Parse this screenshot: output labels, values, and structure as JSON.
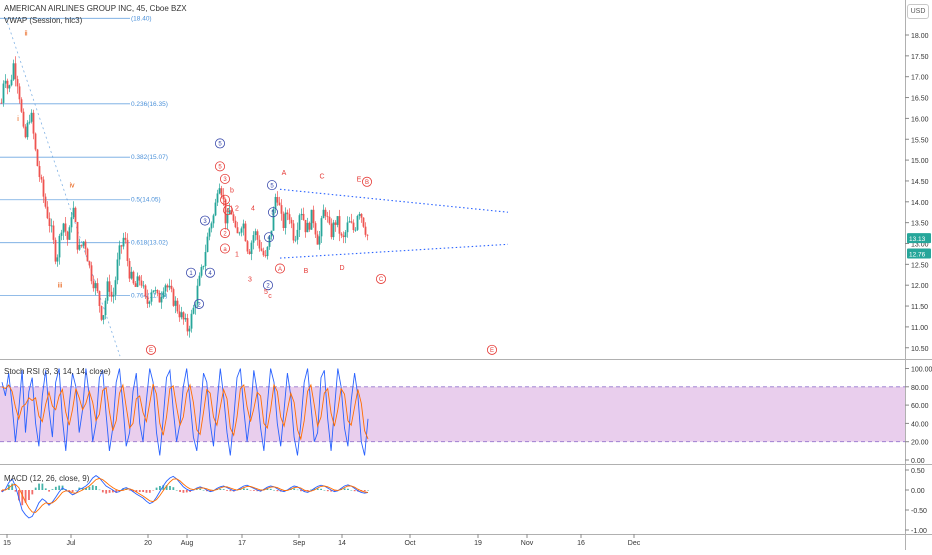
{
  "header": {
    "symbol_title": "AMERICAN AIRLINES GROUP INC, 45, Cboe BZX",
    "vwap_label": "VWAP (Session, hlc3)",
    "currency_badge": "USD"
  },
  "colors": {
    "up": "#26a69a",
    "down": "#ef5350",
    "fib": "#4a90d9",
    "wave_red": "#e53935",
    "wave_blue": "#3949ab",
    "wave_orange": "#e65100",
    "trend": "#2962ff",
    "rsi_band": "#e1bee7",
    "k_line": "#2962ff",
    "d_line": "#ff6d00",
    "macd_line": "#2962ff",
    "signal_line": "#ff6d00"
  },
  "chart_data": [
    {
      "type": "candlestick",
      "title": "AMERICAN AIRLINES GROUP INC, 45, Cboe BZX",
      "yaxis": {
        "ticks": [
          "18.00",
          "17.50",
          "17.00",
          "16.50",
          "16.00",
          "15.50",
          "15.00",
          "14.50",
          "14.00",
          "13.50",
          "13.00",
          "12.50",
          "12.00",
          "11.50",
          "11.00",
          "10.50"
        ],
        "ylim": [
          10.15,
          18.65
        ]
      },
      "xaxis": {
        "ticks": [
          "15",
          "Jul",
          "20",
          "Aug",
          "17",
          "Sep",
          "14",
          "Oct",
          "19",
          "Nov",
          "16",
          "Dec"
        ]
      },
      "price_path": [
        [
          0,
          16.1
        ],
        [
          4,
          17.2
        ],
        [
          8,
          16.6
        ],
        [
          13,
          17.3
        ],
        [
          18,
          16.8
        ],
        [
          24,
          15.4
        ],
        [
          30,
          16.2
        ],
        [
          36,
          15.0
        ],
        [
          44,
          14.0
        ],
        [
          50,
          13.4
        ],
        [
          56,
          12.6
        ],
        [
          62,
          13.6
        ],
        [
          68,
          13.0
        ],
        [
          72,
          14.0
        ],
        [
          78,
          12.8
        ],
        [
          84,
          13.1
        ],
        [
          90,
          12.3
        ],
        [
          96,
          11.9
        ],
        [
          102,
          11.2
        ],
        [
          108,
          12.1
        ],
        [
          112,
          11.6
        ],
        [
          118,
          12.7
        ],
        [
          124,
          13.2
        ],
        [
          128,
          12.4
        ],
        [
          134,
          11.9
        ],
        [
          140,
          12.2
        ],
        [
          146,
          11.5
        ],
        [
          152,
          12.0
        ],
        [
          158,
          11.6
        ],
        [
          164,
          12.1
        ],
        [
          170,
          11.8
        ],
        [
          176,
          11.5
        ],
        [
          182,
          11.2
        ],
        [
          187,
          10.95
        ],
        [
          192,
          11.3
        ],
        [
          197,
          11.9
        ],
        [
          202,
          12.4
        ],
        [
          206,
          13.0
        ],
        [
          210,
          13.5
        ],
        [
          214,
          13.7
        ],
        [
          218,
          14.6
        ],
        [
          222,
          14.2
        ],
        [
          226,
          13.4
        ],
        [
          230,
          13.9
        ],
        [
          236,
          13.1
        ],
        [
          242,
          13.6
        ],
        [
          248,
          12.8
        ],
        [
          254,
          13.3
        ],
        [
          260,
          12.9
        ],
        [
          265,
          12.6
        ],
        [
          270,
          13.2
        ],
        [
          276,
          14.3
        ],
        [
          282,
          13.4
        ],
        [
          288,
          13.8
        ],
        [
          294,
          13.1
        ],
        [
          300,
          13.9
        ],
        [
          306,
          13.3
        ],
        [
          312,
          13.7
        ],
        [
          318,
          13.0
        ],
        [
          324,
          13.9
        ],
        [
          330,
          13.2
        ],
        [
          336,
          13.6
        ],
        [
          342,
          13.0
        ],
        [
          348,
          13.5
        ],
        [
          354,
          13.3
        ],
        [
          358,
          13.9
        ],
        [
          362,
          13.6
        ],
        [
          368,
          13.1
        ]
      ],
      "fib_levels": [
        {
          "label": "(18.40)",
          "price": 18.4
        },
        {
          "label": "0.236(16.35)",
          "price": 16.35
        },
        {
          "label": "0.382(15.07)",
          "price": 15.07
        },
        {
          "label": "0.5(14.05)",
          "price": 14.05
        },
        {
          "label": "0.618(13.02)",
          "price": 13.02
        },
        {
          "label": "0.764(11.75)",
          "price": 11.75
        }
      ],
      "last_price_labels": [
        "13.13",
        "12.76"
      ],
      "wave_labels": [
        {
          "text": "ii",
          "price": 18.05,
          "color": "orange",
          "style": "plain"
        },
        {
          "text": "i",
          "price": 16.0,
          "color": "orange",
          "style": "plain"
        },
        {
          "text": "iv",
          "price": 14.4,
          "color": "orange",
          "style": "plain"
        },
        {
          "text": "iii",
          "price": 12.0,
          "color": "orange",
          "style": "plain"
        },
        {
          "text": "E",
          "price": 10.45,
          "color": "red",
          "style": "circle"
        },
        {
          "text": "E",
          "price": 10.45,
          "color": "red",
          "style": "circle"
        },
        {
          "text": "1",
          "price": 12.3,
          "color": "blue",
          "style": "circle"
        },
        {
          "text": "2",
          "price": 11.55,
          "color": "blue",
          "style": "circle"
        },
        {
          "text": "4",
          "price": 12.3,
          "color": "blue",
          "style": "circle"
        },
        {
          "text": "3",
          "price": 13.55,
          "color": "blue",
          "style": "circle"
        },
        {
          "text": "5",
          "price": 15.4,
          "color": "blue",
          "style": "circle"
        },
        {
          "text": "5",
          "price": 14.85,
          "color": "red",
          "style": "circle"
        },
        {
          "text": "3",
          "price": 14.55,
          "color": "red",
          "style": "circle"
        },
        {
          "text": "b",
          "price": 14.28,
          "color": "red",
          "style": "plain"
        },
        {
          "text": "1",
          "price": 14.05,
          "color": "red",
          "style": "circle"
        },
        {
          "text": "4",
          "price": 13.8,
          "color": "red",
          "style": "circle"
        },
        {
          "text": "2",
          "price": 13.25,
          "color": "red",
          "style": "circle"
        },
        {
          "text": "a",
          "price": 12.88,
          "color": "red",
          "style": "circle"
        },
        {
          "text": "1",
          "price": 12.75,
          "color": "red",
          "style": "plain"
        },
        {
          "text": "2",
          "price": 13.85,
          "color": "red",
          "style": "plain"
        },
        {
          "text": "4",
          "price": 13.85,
          "color": "red",
          "style": "plain"
        },
        {
          "text": "3",
          "price": 12.15,
          "color": "red",
          "style": "plain"
        },
        {
          "text": "5",
          "price": 13.75,
          "color": "blue",
          "style": "circle"
        },
        {
          "text": "4",
          "price": 13.15,
          "color": "blue",
          "style": "circle"
        },
        {
          "text": "2",
          "price": 12.0,
          "color": "blue",
          "style": "circle"
        },
        {
          "text": "5",
          "price": 11.85,
          "color": "red",
          "style": "plain"
        },
        {
          "text": "c",
          "price": 11.75,
          "color": "red",
          "style": "plain"
        },
        {
          "text": "5",
          "price": 14.4,
          "color": "blue",
          "style": "circle"
        },
        {
          "text": "A",
          "price": 14.7,
          "color": "red",
          "style": "plain"
        },
        {
          "text": "A",
          "price": 12.4,
          "color": "red",
          "style": "circle"
        },
        {
          "text": "B",
          "price": 12.35,
          "color": "red",
          "style": "plain"
        },
        {
          "text": "C",
          "price": 14.62,
          "color": "red",
          "style": "plain"
        },
        {
          "text": "D",
          "price": 12.42,
          "color": "red",
          "style": "plain"
        },
        {
          "text": "E",
          "price": 14.55,
          "color": "red",
          "style": "plain"
        },
        {
          "text": "B",
          "price": 14.48,
          "color": "red",
          "style": "circle"
        },
        {
          "text": "C",
          "price": 12.15,
          "color": "red",
          "style": "circle"
        }
      ],
      "trendlines": [
        {
          "name": "upper",
          "from": [
            280,
            14.3
          ],
          "to": [
            508,
            13.75
          ]
        },
        {
          "name": "lower",
          "from": [
            280,
            12.65
          ],
          "to": [
            508,
            12.98
          ]
        }
      ]
    },
    {
      "type": "line",
      "title": "Stoch RSI (3, 3, 14, 14, close)",
      "yaxis": {
        "ticks": [
          "100.00",
          "80.00",
          "60.00",
          "40.00",
          "20.00",
          "0.00"
        ],
        "ylim": [
          -4,
          104
        ]
      },
      "band": [
        20,
        80
      ],
      "series": [
        {
          "name": "K",
          "values": [
            85,
            70,
            95,
            60,
            20,
            55,
            98,
            30,
            75,
            90,
            40,
            15,
            70,
            98,
            55,
            25,
            85,
            100,
            45,
            10,
            60,
            95,
            80,
            30,
            55,
            100,
            70,
            20,
            40,
            90,
            98,
            50,
            10,
            35,
            85,
            100,
            60,
            15,
            30,
            75,
            95,
            40,
            20,
            65,
            100,
            85,
            30,
            5,
            45,
            90,
            98,
            55,
            20,
            40,
            80,
            100,
            65,
            25,
            10,
            50,
            95,
            85,
            40,
            15,
            60,
            100,
            70,
            30,
            5,
            45,
            90,
            100,
            55,
            20,
            50,
            98,
            75,
            35,
            10,
            60,
            100,
            85,
            40,
            15,
            55,
            95,
            70,
            25,
            5,
            40,
            85,
            100,
            60,
            20,
            30,
            90,
            98,
            45,
            10,
            55,
            100,
            80,
            35,
            15,
            65,
            95,
            70,
            20,
            5,
            45
          ]
        },
        {
          "name": "D",
          "values": [
            80,
            78,
            82,
            75,
            58,
            45,
            58,
            61,
            68,
            65,
            68,
            48,
            42,
            61,
            74,
            59,
            55,
            70,
            77,
            52,
            38,
            55,
            78,
            68,
            55,
            62,
            75,
            63,
            43,
            50,
            76,
            79,
            53,
            32,
            43,
            73,
            82,
            58,
            35,
            40,
            67,
            70,
            52,
            42,
            62,
            83,
            72,
            40,
            27,
            47,
            78,
            81,
            58,
            38,
            47,
            73,
            82,
            63,
            33,
            28,
            52,
            77,
            73,
            47,
            38,
            58,
            77,
            67,
            35,
            27,
            47,
            78,
            82,
            58,
            42,
            56,
            74,
            70,
            40,
            35,
            55,
            82,
            75,
            47,
            37,
            55,
            73,
            63,
            33,
            23,
            43,
            75,
            82,
            60,
            37,
            47,
            73,
            78,
            51,
            37,
            55,
            78,
            72,
            43,
            38,
            58,
            77,
            62,
            32,
            23
          ]
        }
      ]
    },
    {
      "type": "line",
      "title": "MACD (12, 26, close, 9)",
      "yaxis": {
        "ticks": [
          "0.50",
          "0.00",
          "-0.50",
          "-1.00"
        ],
        "ylim": [
          -1.15,
          0.6
        ]
      },
      "series": [
        {
          "name": "MACD",
          "values": [
            -0.05,
            0.02,
            0.18,
            0.28,
            0.1,
            -0.2,
            -0.5,
            -0.62,
            -0.7,
            -0.66,
            -0.5,
            -0.32,
            -0.22,
            -0.28,
            -0.38,
            -0.3,
            -0.18,
            -0.05,
            0.05,
            0.0,
            -0.05,
            -0.12,
            -0.08,
            0.02,
            0.05,
            0.1,
            0.18,
            0.3,
            0.36,
            0.3,
            0.2,
            0.1,
            0.05,
            0.0,
            -0.06,
            -0.04,
            0.03,
            0.06,
            0.02,
            -0.04,
            -0.1,
            -0.15,
            -0.2,
            -0.28,
            -0.34,
            -0.3,
            -0.18,
            -0.04,
            0.1,
            0.22,
            0.3,
            0.34,
            0.28,
            0.18,
            0.08,
            0.02,
            -0.02,
            0.0,
            0.05,
            0.08,
            0.05,
            0.0,
            -0.04,
            -0.02,
            0.04,
            0.08,
            0.1,
            0.06,
            0.02,
            -0.02,
            0.0,
            0.05,
            0.1,
            0.12,
            0.08,
            0.04,
            0.0,
            -0.03,
            0.02,
            0.07,
            0.1,
            0.08,
            0.03,
            -0.02,
            -0.04,
            0.0,
            0.06,
            0.1,
            0.08,
            0.02,
            -0.04,
            -0.06,
            -0.02,
            0.04,
            0.09,
            0.12,
            0.1,
            0.05,
            0.0,
            -0.04,
            -0.02,
            0.04,
            0.1,
            0.13,
            0.1,
            0.04,
            -0.02,
            -0.06,
            -0.08,
            -0.06
          ]
        },
        {
          "name": "Signal",
          "values": [
            0.0,
            0.0,
            0.05,
            0.12,
            0.14,
            0.06,
            -0.12,
            -0.3,
            -0.45,
            -0.55,
            -0.56,
            -0.48,
            -0.38,
            -0.32,
            -0.34,
            -0.32,
            -0.26,
            -0.16,
            -0.06,
            -0.02,
            -0.03,
            -0.07,
            -0.08,
            -0.04,
            0.0,
            0.05,
            0.1,
            0.18,
            0.26,
            0.29,
            0.26,
            0.19,
            0.12,
            0.06,
            0.01,
            -0.02,
            -0.01,
            0.02,
            0.03,
            0.0,
            -0.05,
            -0.1,
            -0.15,
            -0.21,
            -0.27,
            -0.29,
            -0.24,
            -0.14,
            -0.02,
            0.1,
            0.2,
            0.27,
            0.28,
            0.23,
            0.15,
            0.08,
            0.03,
            0.01,
            0.03,
            0.05,
            0.05,
            0.03,
            0.0,
            -0.01,
            0.01,
            0.05,
            0.08,
            0.08,
            0.05,
            0.02,
            0.0,
            0.02,
            0.06,
            0.09,
            0.09,
            0.06,
            0.03,
            0.0,
            0.0,
            0.04,
            0.07,
            0.08,
            0.06,
            0.02,
            -0.01,
            -0.01,
            0.02,
            0.06,
            0.07,
            0.05,
            0.0,
            -0.03,
            -0.03,
            0.0,
            0.05,
            0.09,
            0.1,
            0.08,
            0.04,
            0.0,
            -0.01,
            0.01,
            0.06,
            0.1,
            0.1,
            0.07,
            0.02,
            -0.02,
            -0.05,
            -0.06
          ]
        }
      ]
    }
  ]
}
